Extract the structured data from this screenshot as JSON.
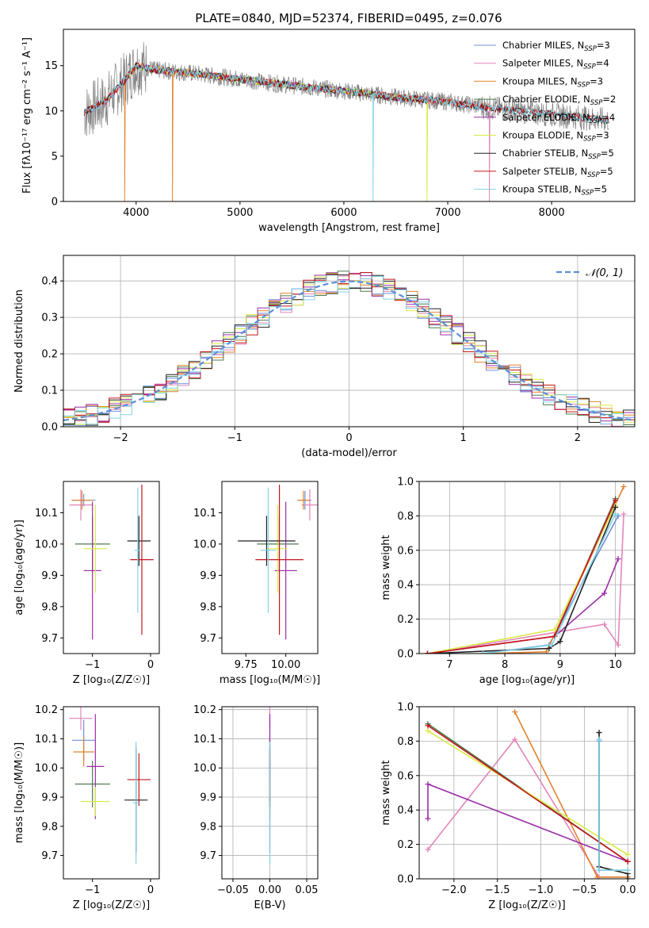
{
  "figure": {
    "title": "PLATE=0840, MJD=52374, FIBERID=0495, z=0.076"
  },
  "colors": {
    "Chabrier MILES": "#6f8fd8",
    "Salpeter MILES": "#e386b8",
    "Kroupa MILES": "#e0822f",
    "Chabrier ELODIE": "#4f7a4f",
    "Salpeter ELODIE": "#9b2ea8",
    "Kroupa ELODIE": "#d7ec45",
    "Chabrier STELIB": "#222222",
    "Salpeter STELIB": "#c4161c",
    "Kroupa STELIB": "#7fd3e6",
    "data": "#808080",
    "normal": "#5b8fd8",
    "grid": "#b0b0b0"
  },
  "chart_data": [
    {
      "panel": "spectrum",
      "type": "line",
      "title": "PLATE=0840, MJD=52374, FIBERID=0495, z=0.076",
      "xlabel": "wavelength [Angstrom, rest frame]",
      "ylabel": "Flux [fλ10⁻¹⁷ erg cm⁻² s⁻¹ A⁻¹]",
      "xlim": [
        3300,
        8800
      ],
      "ylim": [
        0,
        19
      ],
      "xticks": [
        4000,
        5000,
        6000,
        7000,
        8000
      ],
      "yticks": [
        0,
        5,
        10,
        15
      ],
      "grid": false,
      "legend_position": "top-right",
      "legend": [
        {
          "name": "Chabrier MILES",
          "sub": "SSP",
          "n": "3"
        },
        {
          "name": "Salpeter MILES",
          "sub": "SSP",
          "n": "4"
        },
        {
          "name": "Kroupa MILES",
          "sub": "SSP",
          "n": "3"
        },
        {
          "name": "Chabrier ELODIE",
          "sub": "SSP",
          "n": "2"
        },
        {
          "name": "Salpeter ELODIE",
          "sub": "SSP",
          "n": "4"
        },
        {
          "name": "Kroupa ELODIE",
          "sub": "SSP",
          "n": "3"
        },
        {
          "name": "Chabrier STELIB",
          "sub": "SSP",
          "n": "5"
        },
        {
          "name": "Salpeter STELIB",
          "sub": "SSP",
          "n": "5"
        },
        {
          "name": "Kroupa STELIB",
          "sub": "SSP",
          "n": "5"
        }
      ],
      "continuum": {
        "x": [
          3500,
          3700,
          3900,
          4000,
          4200,
          4500,
          5000,
          5500,
          6000,
          6500,
          7000,
          7500,
          8000,
          8500
        ],
        "y": [
          9.8,
          11.0,
          13.5,
          15.0,
          14.5,
          14.2,
          13.5,
          12.8,
          12.2,
          11.5,
          11.0,
          10.2,
          9.6,
          9.0
        ]
      },
      "data_range": [
        3500,
        8550
      ],
      "model_ranges": {
        "MILES": [
          3540,
          7410
        ],
        "ELODIE": [
          3890,
          6800
        ],
        "STELIB": [
          3500,
          8550
        ]
      },
      "dips": [
        {
          "x": 3890,
          "model": "Kroupa MILES",
          "y": 0
        },
        {
          "x": 4350,
          "model": "Kroupa MILES",
          "y": 0
        },
        {
          "x": 6280,
          "model": "Kroupa STELIB",
          "y": 0
        },
        {
          "x": 6800,
          "model": "Kroupa ELODIE",
          "y": 0
        },
        {
          "x": 7400,
          "model": "Salpeter MILES",
          "y": 0
        }
      ]
    },
    {
      "panel": "residuals",
      "type": "step",
      "xlabel": "(data-model)/error",
      "ylabel": "Normed distribution",
      "xlim": [
        -2.5,
        2.5
      ],
      "ylim": [
        0,
        0.47
      ],
      "xticks": [
        -2,
        -1,
        0,
        1,
        2
      ],
      "yticks": [
        0.0,
        0.1,
        0.2,
        0.3,
        0.4
      ],
      "grid": true,
      "legend_position": "top-right",
      "normal_label": "𝒩(0, 1)",
      "bin_width": 0.1
    },
    {
      "panel": "age-vs-Z",
      "type": "scatter",
      "xlabel": "Z [log₁₀(Z/Z☉)]",
      "ylabel": "age  [log₁₀(age/yr)]",
      "xlim": [
        -1.5,
        0.15
      ],
      "ylim": [
        9.65,
        10.2
      ],
      "xticks": [
        -1,
        0
      ],
      "yticks": [
        9.7,
        9.8,
        9.9,
        10.0,
        10.1
      ],
      "grid": false,
      "points": [
        {
          "model": "Chabrier MILES",
          "x": -1.15,
          "xerr": 0.2,
          "y": 10.14,
          "yerr": 0.02
        },
        {
          "model": "Salpeter MILES",
          "x": -1.2,
          "xerr": 0.2,
          "y": 10.125,
          "yerr": 0.05
        },
        {
          "model": "Kroupa MILES",
          "x": -1.18,
          "xerr": 0.18,
          "y": 10.14,
          "yerr": 0.03
        },
        {
          "model": "Chabrier ELODIE",
          "x": -1.0,
          "xerr": 0.3,
          "y": 10.0,
          "yerr": 0.09
        },
        {
          "model": "Salpeter ELODIE",
          "x": -1.0,
          "xerr": 0.15,
          "y": 9.915,
          "yerr": 0.22
        },
        {
          "model": "Kroupa ELODIE",
          "x": -0.95,
          "xerr": 0.2,
          "y": 9.985,
          "yerr": 0.14
        },
        {
          "model": "Chabrier STELIB",
          "x": -0.2,
          "xerr": 0.2,
          "y": 10.01,
          "yerr": 0.08
        },
        {
          "model": "Salpeter STELIB",
          "x": -0.15,
          "xerr": 0.2,
          "y": 9.95,
          "yerr": 0.24
        },
        {
          "model": "Kroupa STELIB",
          "x": -0.22,
          "xerr": 0.05,
          "y": 9.98,
          "yerr": 0.2
        }
      ]
    },
    {
      "panel": "age-vs-mass",
      "type": "scatter",
      "xlabel": "mass [log₁₀(M/M☉)]",
      "ylabel": "",
      "xlim": [
        9.6,
        10.2
      ],
      "ylim": [
        9.65,
        10.2
      ],
      "xticks": [
        9.75,
        10.0
      ],
      "xticklabels": [
        "9.75",
        "10.00"
      ],
      "yticks": [
        9.7,
        9.8,
        9.9,
        10.0,
        10.1
      ],
      "grid": false,
      "points": [
        {
          "model": "Chabrier MILES",
          "x": 10.12,
          "xerr": 0.04,
          "y": 10.14,
          "yerr": 0.03
        },
        {
          "model": "Salpeter MILES",
          "x": 10.15,
          "xerr": 0.05,
          "y": 10.125,
          "yerr": 0.05
        },
        {
          "model": "Kroupa MILES",
          "x": 10.11,
          "xerr": 0.04,
          "y": 10.14,
          "yerr": 0.03
        },
        {
          "model": "Chabrier ELODIE",
          "x": 9.95,
          "xerr": 0.13,
          "y": 10.0,
          "yerr": 0.09
        },
        {
          "model": "Salpeter ELODIE",
          "x": 10.0,
          "xerr": 0.07,
          "y": 9.915,
          "yerr": 0.22
        },
        {
          "model": "Kroupa ELODIE",
          "x": 9.95,
          "xerr": 0.06,
          "y": 9.985,
          "yerr": 0.14
        },
        {
          "model": "Chabrier STELIB",
          "x": 9.88,
          "xerr": 0.18,
          "y": 10.01,
          "yerr": 0.08
        },
        {
          "model": "Salpeter STELIB",
          "x": 9.96,
          "xerr": 0.15,
          "y": 9.95,
          "yerr": 0.24
        },
        {
          "model": "Kroupa STELIB",
          "x": 9.89,
          "xerr": 0.05,
          "y": 9.98,
          "yerr": 0.2
        }
      ]
    },
    {
      "panel": "weight-vs-age",
      "type": "line",
      "xlabel": "age  [log₁₀(age/yr)]",
      "ylabel": "mass weight",
      "xlim": [
        6.45,
        10.35
      ],
      "ylim": [
        0,
        1
      ],
      "xticks": [
        7,
        8,
        9,
        10
      ],
      "yticks": [
        0.0,
        0.2,
        0.4,
        0.6,
        0.8,
        1.0
      ],
      "grid": true,
      "series": [
        {
          "model": "Chabrier MILES",
          "x": [
            7.6,
            8.8,
            10.05
          ],
          "y": [
            0.0,
            0.05,
            0.8
          ]
        },
        {
          "model": "Salpeter MILES",
          "x": [
            6.6,
            9.8,
            10.05,
            10.15
          ],
          "y": [
            0.0,
            0.17,
            0.05,
            0.81
          ]
        },
        {
          "model": "Kroupa MILES",
          "x": [
            7.6,
            8.75,
            10.15
          ],
          "y": [
            0.0,
            0.01,
            0.97
          ]
        },
        {
          "model": "Chabrier ELODIE",
          "x": [
            8.9,
            10.0
          ],
          "y": [
            0.1,
            0.9
          ]
        },
        {
          "model": "Salpeter ELODIE",
          "x": [
            6.6,
            8.9,
            9.8,
            10.05
          ],
          "y": [
            0.0,
            0.1,
            0.35,
            0.55
          ]
        },
        {
          "model": "Kroupa ELODIE",
          "x": [
            6.6,
            8.9,
            10.0
          ],
          "y": [
            0.0,
            0.14,
            0.86
          ]
        },
        {
          "model": "Chabrier STELIB",
          "x": [
            6.6,
            8.8,
            9.0,
            10.0
          ],
          "y": [
            0.0,
            0.03,
            0.07,
            0.85
          ]
        },
        {
          "model": "Salpeter STELIB",
          "x": [
            6.6,
            8.9,
            10.0
          ],
          "y": [
            0.0,
            0.1,
            0.89
          ]
        },
        {
          "model": "Kroupa STELIB",
          "x": [
            7.6,
            8.85,
            10.0
          ],
          "y": [
            0.0,
            0.05,
            0.81
          ]
        }
      ]
    },
    {
      "panel": "mass-vs-Z",
      "type": "scatter",
      "xlabel": "Z [log₁₀(Z/Z☉)]",
      "ylabel": "mass [log₁₀(M/M☉)]",
      "xlim": [
        -1.5,
        0.15
      ],
      "ylim": [
        9.62,
        10.21
      ],
      "xticks": [
        -1,
        0
      ],
      "yticks": [
        9.7,
        9.8,
        9.9,
        10.0,
        10.1,
        10.2
      ],
      "grid": false,
      "points": [
        {
          "model": "Chabrier MILES",
          "x": -1.15,
          "xerr": 0.2,
          "y": 10.095,
          "yerr": 0.07
        },
        {
          "model": "Salpeter MILES",
          "x": -1.2,
          "xerr": 0.2,
          "y": 10.17,
          "yerr": 0.04
        },
        {
          "model": "Kroupa MILES",
          "x": -1.15,
          "xerr": 0.18,
          "y": 10.055,
          "yerr": 0.05
        },
        {
          "model": "Chabrier ELODIE",
          "x": -1.0,
          "xerr": 0.3,
          "y": 9.945,
          "yerr": 0.08
        },
        {
          "model": "Salpeter ELODIE",
          "x": -0.95,
          "xerr": 0.15,
          "y": 10.005,
          "yerr": 0.18
        },
        {
          "model": "Kroupa ELODIE",
          "x": -0.95,
          "xerr": 0.25,
          "y": 9.885,
          "yerr": 0.05
        },
        {
          "model": "Chabrier STELIB",
          "x": -0.25,
          "xerr": 0.2,
          "y": 9.89,
          "yerr": 0.18
        },
        {
          "model": "Salpeter STELIB",
          "x": -0.2,
          "xerr": 0.2,
          "y": 9.96,
          "yerr": 0.09
        },
        {
          "model": "Kroupa STELIB",
          "x": -0.25,
          "xerr": 0.05,
          "y": 9.88,
          "yerr": 0.21
        }
      ]
    },
    {
      "panel": "mass-vs-EBV",
      "type": "scatter",
      "xlabel": "E(B-V)",
      "ylabel": "",
      "xlim": [
        -0.065,
        0.065
      ],
      "ylim": [
        9.62,
        10.21
      ],
      "xticks": [
        -0.05,
        0.0,
        0.05
      ],
      "xticklabels": [
        "−0.05",
        "0.00",
        "0.05"
      ],
      "yticks": [
        9.7,
        9.8,
        9.9,
        10.0,
        10.1,
        10.2
      ],
      "grid": true,
      "points": [
        {
          "model": "Chabrier MILES",
          "x": 0.0,
          "y": 10.095,
          "yerr": 0.07
        },
        {
          "model": "Salpeter MILES",
          "x": 0.0,
          "y": 10.17,
          "yerr": 0.04
        },
        {
          "model": "Kroupa MILES",
          "x": 0.0,
          "y": 10.055,
          "yerr": 0.05
        },
        {
          "model": "Chabrier ELODIE",
          "x": 0.0,
          "y": 9.945,
          "yerr": 0.08
        },
        {
          "model": "Salpeter ELODIE",
          "x": 0.0,
          "y": 10.005,
          "yerr": 0.18
        },
        {
          "model": "Kroupa ELODIE",
          "x": 0.0,
          "y": 9.885,
          "yerr": 0.05
        },
        {
          "model": "Chabrier STELIB",
          "x": 0.0,
          "y": 9.89,
          "yerr": 0.18
        },
        {
          "model": "Salpeter STELIB",
          "x": 0.0,
          "y": 9.96,
          "yerr": 0.09
        },
        {
          "model": "Kroupa STELIB",
          "x": 0.0,
          "y": 9.88,
          "yerr": 0.21
        }
      ]
    },
    {
      "panel": "weight-vs-Z",
      "type": "line",
      "xlabel": "Z [log₁₀(Z/Z☉)]",
      "ylabel": "mass weight",
      "xlim": [
        -2.4,
        0.08
      ],
      "ylim": [
        0,
        1
      ],
      "xticks": [
        -2.0,
        -1.5,
        -1.0,
        -0.5,
        0.0
      ],
      "xticklabels": [
        "−2.0",
        "−1.5",
        "−1.0",
        "−0.5",
        "0.0"
      ],
      "yticks": [
        0.0,
        0.2,
        0.4,
        0.6,
        0.8,
        1.0
      ],
      "grid": true,
      "series": [
        {
          "model": "Chabrier MILES",
          "x": [
            -0.33,
            -0.33,
            0.0
          ],
          "y": [
            0.8,
            0.05,
            0.05
          ]
        },
        {
          "model": "Salpeter MILES",
          "x": [
            -2.3,
            -1.3,
            -0.33,
            0.0
          ],
          "y": [
            0.17,
            0.81,
            0.01,
            0.01
          ]
        },
        {
          "model": "Kroupa MILES",
          "x": [
            -1.3,
            -0.35,
            0.0
          ],
          "y": [
            0.97,
            0.01,
            0.01
          ]
        },
        {
          "model": "Chabrier ELODIE",
          "x": [
            -2.3,
            0.0
          ],
          "y": [
            0.9,
            0.1
          ]
        },
        {
          "model": "Salpeter ELODIE",
          "x": [
            -2.3,
            -2.3,
            0.0
          ],
          "y": [
            0.35,
            0.55,
            0.1
          ]
        },
        {
          "model": "Kroupa ELODIE",
          "x": [
            -2.3,
            0.0
          ],
          "y": [
            0.86,
            0.14
          ]
        },
        {
          "model": "Chabrier STELIB",
          "x": [
            -0.33,
            -0.33,
            0.0,
            0.0
          ],
          "y": [
            0.85,
            0.07,
            0.03,
            0.0
          ]
        },
        {
          "model": "Salpeter STELIB",
          "x": [
            -2.3,
            0.0
          ],
          "y": [
            0.89,
            0.1
          ]
        },
        {
          "model": "Kroupa STELIB",
          "x": [
            -0.33,
            -0.33,
            0.0
          ],
          "y": [
            0.81,
            0.05,
            0.05
          ]
        }
      ]
    }
  ]
}
